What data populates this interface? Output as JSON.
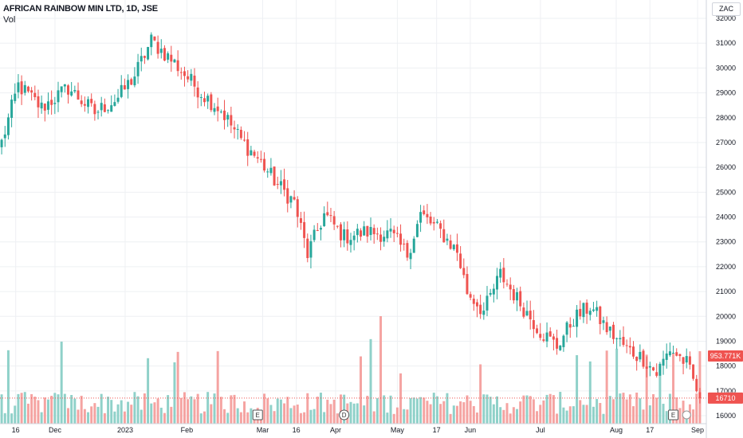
{
  "header": {
    "title": "AFRICAN RAINBOW MIN LTD, 1D, JSE",
    "volume_label": "Vol",
    "currency": "ZAC"
  },
  "colors": {
    "up": "#26a69a",
    "down": "#ef5350",
    "up_volume": "#8fd1c9",
    "down_volume": "#f5a3a1",
    "grid": "#eef0f3",
    "price_line": "#ef5350",
    "axis_text": "#131722"
  },
  "price_tags": {
    "volume": "953.771K",
    "price": "16710"
  },
  "markers": [
    {
      "label": "E",
      "date_label": "Mar",
      "type": "earnings"
    },
    {
      "label": "D",
      "date_label": "Apr",
      "type": "dividend"
    },
    {
      "label": "E",
      "date_label": "Sep",
      "type": "earnings"
    }
  ],
  "chart_data": {
    "type": "candlestick",
    "title": "AFRICAN RAINBOW MIN LTD, 1D, JSE",
    "currency": "ZAC",
    "y_ticks": [
      16000,
      17000,
      18000,
      19000,
      20000,
      21000,
      22000,
      23000,
      24000,
      25000,
      26000,
      27000,
      28000,
      29000,
      30000,
      31000,
      32000
    ],
    "ylim": [
      15600,
      32300
    ],
    "x_ticks": [
      "16",
      "Dec",
      "2023",
      "Feb",
      "Mar",
      "16",
      "Apr",
      "May",
      "17",
      "Jun",
      "Jul",
      "Aug",
      "17",
      "Sep"
    ],
    "last_price": 16710,
    "last_volume": "953.771K",
    "grid": true,
    "close_anchors": [
      [
        0,
        27000
      ],
      [
        5,
        29300
      ],
      [
        12,
        28400
      ],
      [
        20,
        29200
      ],
      [
        28,
        28200
      ],
      [
        35,
        28800
      ],
      [
        40,
        29700
      ],
      [
        45,
        31100
      ],
      [
        52,
        30200
      ],
      [
        60,
        29000
      ],
      [
        66,
        28300
      ],
      [
        72,
        27100
      ],
      [
        78,
        26200
      ],
      [
        83,
        25300
      ],
      [
        88,
        24600
      ],
      [
        92,
        22500
      ],
      [
        97,
        24100
      ],
      [
        103,
        23200
      ],
      [
        110,
        23400
      ],
      [
        117,
        23300
      ],
      [
        122,
        22500
      ],
      [
        126,
        24100
      ],
      [
        132,
        23400
      ],
      [
        137,
        22600
      ],
      [
        140,
        21000
      ],
      [
        145,
        20200
      ],
      [
        150,
        21700
      ],
      [
        155,
        20700
      ],
      [
        162,
        19400
      ],
      [
        167,
        18800
      ],
      [
        172,
        19900
      ],
      [
        177,
        20400
      ],
      [
        182,
        19500
      ],
      [
        188,
        18700
      ],
      [
        193,
        18300
      ],
      [
        197,
        17700
      ],
      [
        201,
        18700
      ],
      [
        206,
        18100
      ],
      [
        210,
        16710
      ]
    ]
  }
}
